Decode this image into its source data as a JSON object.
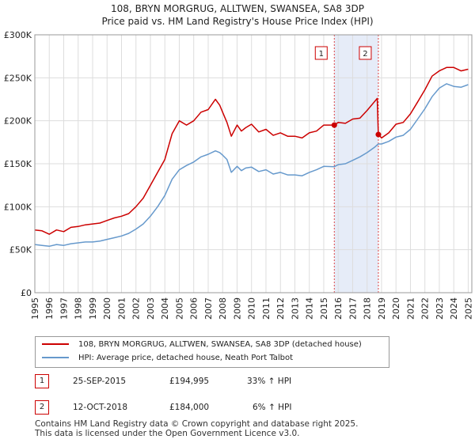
{
  "chart_data": {
    "type": "line",
    "title": "108, BRYN MORGRUG, ALLTWEN, SWANSEA, SA8 3DP",
    "subtitle": "Price paid vs. HM Land Registry's House Price Index (HPI)",
    "xlim": [
      1995.0,
      2025.25
    ],
    "ylim": [
      0,
      300000
    ],
    "x_ticks": [
      1995,
      1996,
      1997,
      1998,
      1999,
      2000,
      2001,
      2002,
      2003,
      2004,
      2005,
      2006,
      2007,
      2008,
      2009,
      2010,
      2011,
      2012,
      2013,
      2014,
      2015,
      2016,
      2017,
      2018,
      2019,
      2020,
      2021,
      2022,
      2023,
      2024,
      2025
    ],
    "y_ticks": [
      0,
      50000,
      100000,
      150000,
      200000,
      250000,
      300000
    ],
    "y_tick_labels": [
      "£0",
      "£50K",
      "£100K",
      "£150K",
      "£200K",
      "£250K",
      "£300K"
    ],
    "grid": true,
    "shaded_region": [
      2015.73,
      2018.78
    ],
    "series": [
      {
        "name": "108, BRYN MORGRUG, ALLTWEN, SWANSEA, SA8 3DP (detached house)",
        "color": "#cc0000",
        "x": [
          1995.0,
          1995.5,
          1996.0,
          1996.5,
          1997.0,
          1997.5,
          1998.0,
          1998.5,
          1999.0,
          1999.5,
          2000.0,
          2000.5,
          2001.0,
          2001.5,
          2002.0,
          2002.5,
          2003.0,
          2003.5,
          2004.0,
          2004.5,
          2005.0,
          2005.5,
          2006.0,
          2006.5,
          2007.0,
          2007.5,
          2007.8,
          2008.0,
          2008.3,
          2008.6,
          2009.0,
          2009.3,
          2009.6,
          2010.0,
          2010.5,
          2011.0,
          2011.5,
          2012.0,
          2012.5,
          2013.0,
          2013.5,
          2014.0,
          2014.5,
          2015.0,
          2015.73,
          2016.0,
          2016.5,
          2017.0,
          2017.5,
          2018.0,
          2018.5,
          2018.7,
          2018.78,
          2019.0,
          2019.5,
          2020.0,
          2020.5,
          2021.0,
          2021.5,
          2022.0,
          2022.5,
          2023.0,
          2023.5,
          2024.0,
          2024.5,
          2025.0
        ],
        "y": [
          73000,
          72000,
          68000,
          73000,
          71000,
          76000,
          77000,
          79000,
          80000,
          81000,
          84000,
          87000,
          89000,
          92000,
          100000,
          110000,
          125000,
          140000,
          155000,
          185000,
          200000,
          195000,
          200000,
          210000,
          213000,
          225000,
          218000,
          210000,
          198000,
          182000,
          195000,
          188000,
          192000,
          196000,
          187000,
          190000,
          183000,
          186000,
          182000,
          182000,
          180000,
          186000,
          188000,
          195000,
          194995,
          198000,
          197000,
          202000,
          203000,
          212000,
          222000,
          226000,
          184000,
          180000,
          186000,
          196000,
          198000,
          208000,
          222000,
          236000,
          252000,
          258000,
          262000,
          262000,
          258000,
          260000
        ]
      },
      {
        "name": "HPI: Average price, detached house, Neath Port Talbot",
        "color": "#6699cc",
        "x": [
          1995.0,
          1995.5,
          1996.0,
          1996.5,
          1997.0,
          1997.5,
          1998.0,
          1998.5,
          1999.0,
          1999.5,
          2000.0,
          2000.5,
          2001.0,
          2001.5,
          2002.0,
          2002.5,
          2003.0,
          2003.5,
          2004.0,
          2004.5,
          2005.0,
          2005.5,
          2006.0,
          2006.5,
          2007.0,
          2007.5,
          2007.8,
          2008.0,
          2008.3,
          2008.6,
          2009.0,
          2009.3,
          2009.6,
          2010.0,
          2010.5,
          2011.0,
          2011.5,
          2012.0,
          2012.5,
          2013.0,
          2013.5,
          2014.0,
          2014.5,
          2015.0,
          2015.73,
          2016.0,
          2016.5,
          2017.0,
          2017.5,
          2018.0,
          2018.5,
          2018.78,
          2019.0,
          2019.5,
          2020.0,
          2020.5,
          2021.0,
          2021.5,
          2022.0,
          2022.5,
          2023.0,
          2023.5,
          2024.0,
          2024.5,
          2025.0
        ],
        "y": [
          56000,
          55000,
          54000,
          56000,
          55000,
          57000,
          58000,
          59000,
          59000,
          60000,
          62000,
          64000,
          66000,
          69000,
          74000,
          80000,
          89000,
          100000,
          113000,
          132000,
          143000,
          148000,
          152000,
          158000,
          161000,
          165000,
          163000,
          160000,
          155000,
          140000,
          147000,
          142000,
          145000,
          146000,
          141000,
          143000,
          138000,
          140000,
          137000,
          137000,
          136000,
          140000,
          143000,
          147000,
          146600,
          149000,
          150000,
          154000,
          158000,
          163000,
          169000,
          173000,
          173000,
          176000,
          181000,
          183000,
          190000,
          202000,
          214000,
          228000,
          238000,
          243000,
          240000,
          239000,
          242000
        ]
      }
    ],
    "annotations": [
      {
        "label": "1",
        "x": 2015.73,
        "y": 194995
      },
      {
        "label": "2",
        "x": 2018.78,
        "y": 184000
      }
    ]
  },
  "transactions": [
    {
      "num": "1",
      "date": "25-SEP-2015",
      "price": "£194,995",
      "hpi": "33% ↑ HPI"
    },
    {
      "num": "2",
      "date": "12-OCT-2018",
      "price": "£184,000",
      "hpi": "6% ↑ HPI"
    }
  ],
  "footer": {
    "line1": "Contains HM Land Registry data © Crown copyright and database right 2025.",
    "line2": "This data is licensed under the Open Government Licence v3.0."
  }
}
